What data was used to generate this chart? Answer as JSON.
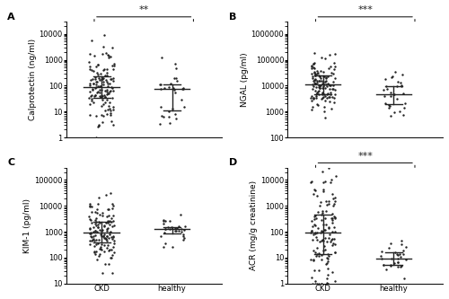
{
  "panels": [
    {
      "label": "A",
      "ylabel": "Calprotectin (ng/ml)",
      "ylim": [
        1,
        30000
      ],
      "yticks": [
        1,
        10,
        100,
        1000,
        10000
      ],
      "significance": "**",
      "groups": [
        "CKD",
        "healthy"
      ],
      "ckd_median": 100,
      "ckd_iqr_low": 30,
      "ckd_iqr_high": 350,
      "healthy_median": 50,
      "healthy_iqr_low": 12,
      "healthy_iqr_high": 120,
      "ckd_n": 130,
      "healthy_n": 30
    },
    {
      "label": "B",
      "ylabel": "NGAL (pg/ml)",
      "ylim": [
        100,
        3000000
      ],
      "yticks": [
        100,
        1000,
        10000,
        100000,
        1000000
      ],
      "significance": "***",
      "groups": [
        "CKD",
        "healthy"
      ],
      "ckd_median": 10000,
      "ckd_iqr_low": 5000,
      "ckd_iqr_high": 30000,
      "healthy_median": 5000,
      "healthy_iqr_low": 2500,
      "healthy_iqr_high": 9000,
      "ckd_n": 130,
      "healthy_n": 30
    },
    {
      "label": "C",
      "ylabel": "KIM-1 (pg/ml)",
      "ylim": [
        10,
        300000
      ],
      "yticks": [
        10,
        100,
        1000,
        10000,
        100000
      ],
      "significance": null,
      "groups": [
        "CKD",
        "healthy"
      ],
      "ckd_median": 950,
      "ckd_iqr_low": 400,
      "ckd_iqr_high": 2500,
      "healthy_median": 1100,
      "healthy_iqr_low": 700,
      "healthy_iqr_high": 2200,
      "ckd_n": 130,
      "healthy_n": 30
    },
    {
      "label": "D",
      "ylabel": "ACR (mg/g creatinine)",
      "ylim": [
        1,
        30000
      ],
      "yticks": [
        1,
        10,
        100,
        1000,
        10000
      ],
      "significance": "***",
      "groups": [
        "CKD",
        "healthy"
      ],
      "ckd_median": 55,
      "ckd_iqr_low": 12,
      "ckd_iqr_high": 500,
      "healthy_median": 8,
      "healthy_iqr_low": 5,
      "healthy_iqr_high": 15,
      "ckd_n": 130,
      "healthy_n": 30
    }
  ],
  "dot_color": "#222222",
  "dot_size": 3,
  "median_color": "#222222",
  "iqr_color": "#222222",
  "bracket_color": "#222222",
  "fontsize_label": 6.5,
  "fontsize_tick": 6,
  "fontsize_sig": 8,
  "fontsize_panel": 8
}
